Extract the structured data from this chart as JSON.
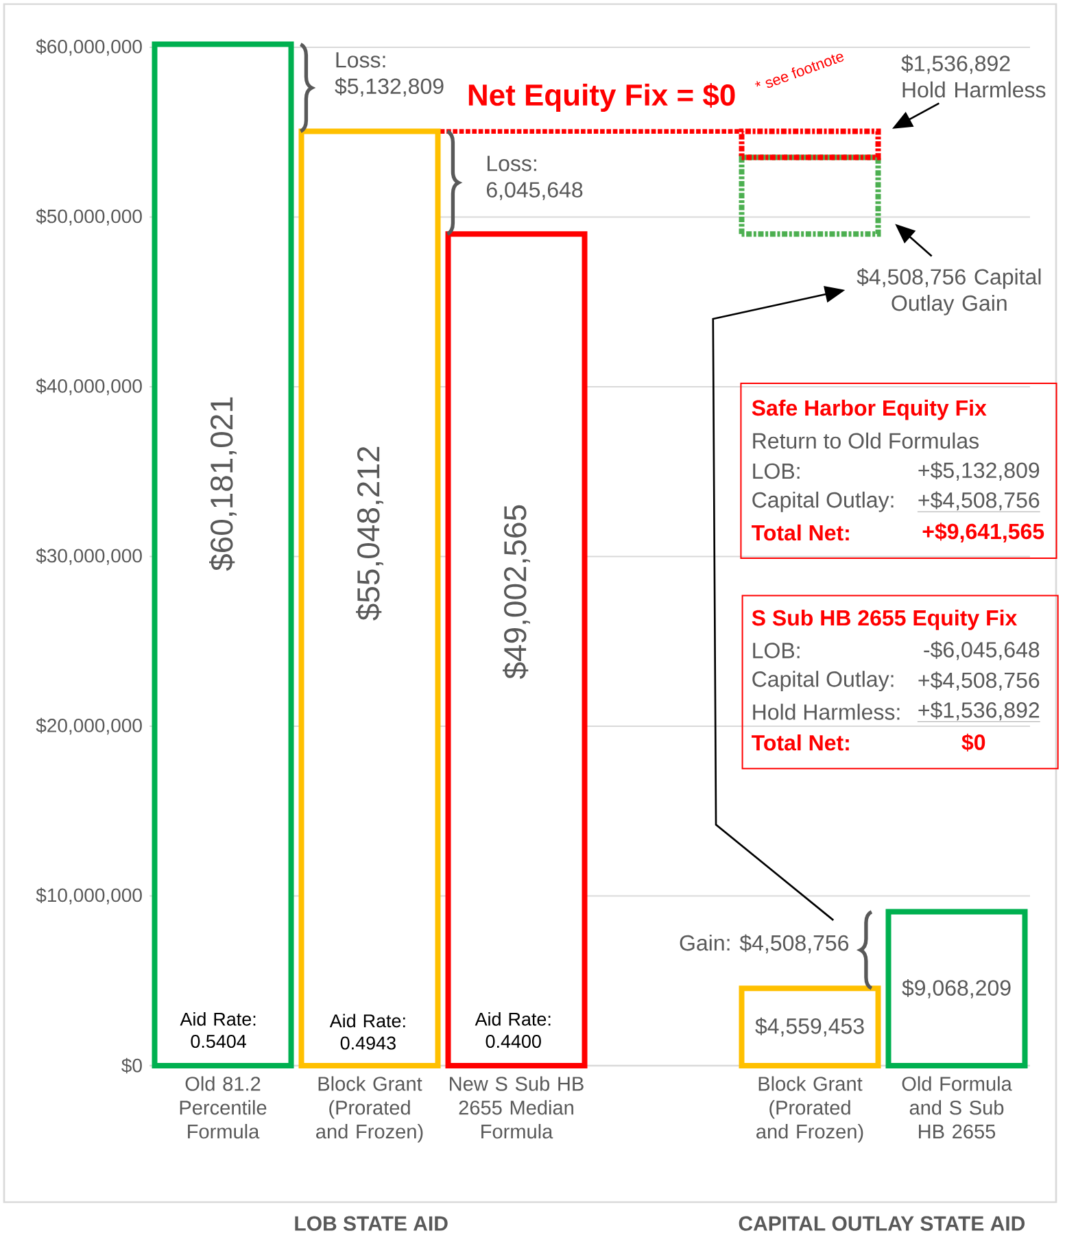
{
  "chart_data": {
    "type": "bar",
    "categories": [
      "Old 81.2 Percentile Formula",
      "Block Grant (Prorated and Frozen)",
      "New S Sub HB 2655 Median Formula",
      null,
      "Block Grant (Prorated and Frozen)",
      "Old Formula and S Sub HB 2655"
    ],
    "series": [
      {
        "colors": [
          "#00b050",
          "#ffc000",
          "#ff0000",
          null,
          "#ffc000",
          "#00b050"
        ],
        "values": [
          60181021,
          55048212,
          49002565,
          null,
          4559453,
          9068209
        ],
        "value_labels": [
          "$60,181,021",
          "$55,048,212",
          "$49,002,565",
          null,
          "$4,559,453",
          "$9,068,209"
        ]
      },
      {
        "color": "#4caf50",
        "line_style": "dashed",
        "values": [
          null,
          null,
          null,
          null,
          4508756,
          null
        ],
        "base": [
          null,
          null,
          null,
          null,
          49002565,
          null
        ]
      },
      {
        "color": "#ff0000",
        "line_style": "dashed",
        "values": [
          null,
          null,
          null,
          null,
          1536892,
          null
        ],
        "base": [
          null,
          null,
          null,
          null,
          53511321,
          null
        ]
      }
    ],
    "ylim": [
      0,
      60181021
    ],
    "yticks": [
      {
        "value": 0,
        "label": "$0"
      },
      {
        "value": 10000000,
        "label": "$10,000,000"
      },
      {
        "value": 20000000,
        "label": "$20,000,000"
      },
      {
        "value": 30000000,
        "label": "$30,000,000"
      },
      {
        "value": 40000000,
        "label": "$40,000,000"
      },
      {
        "value": 50000000,
        "label": "$50,000,000"
      },
      {
        "value": 60000000,
        "label": "$60,000,000"
      }
    ],
    "grid": "y",
    "ref_lines": [
      {
        "axis": "y",
        "value": 55048212,
        "color": "#ff0000",
        "line_style": "dotted"
      }
    ],
    "annotations": [
      {
        "text": "Net Equity Fix = $0",
        "y": 55048212
      },
      "Loss: $5,132,809",
      "Loss: 6,045,648",
      "* see footnote",
      "$1,536,892 Hold Harmless",
      "$4,508,756 Capital Outlay Gain",
      "Gain: $4,508,756",
      "Aid Rate: 0.5404",
      "Aid Rate: 0.4943",
      "Aid Rate: 0.4400",
      "Safe Harbor Equity Fix",
      "Return to Old Formulas",
      "LOB:",
      "+$5,132,809",
      "Capital Outlay:",
      "+$4,508,756",
      "Total Net:",
      "+$9,641,565",
      "S Sub HB 2655 Equity Fix",
      "LOB:",
      "-$6,045,648",
      "Capital Outlay:",
      "+$4,508,756",
      "Hold Harmless:",
      "+$1,536,892",
      "Total Net:",
      "$0",
      "LOB STATE AID",
      "CAPITAL OUTLAY STATE AID"
    ]
  }
}
